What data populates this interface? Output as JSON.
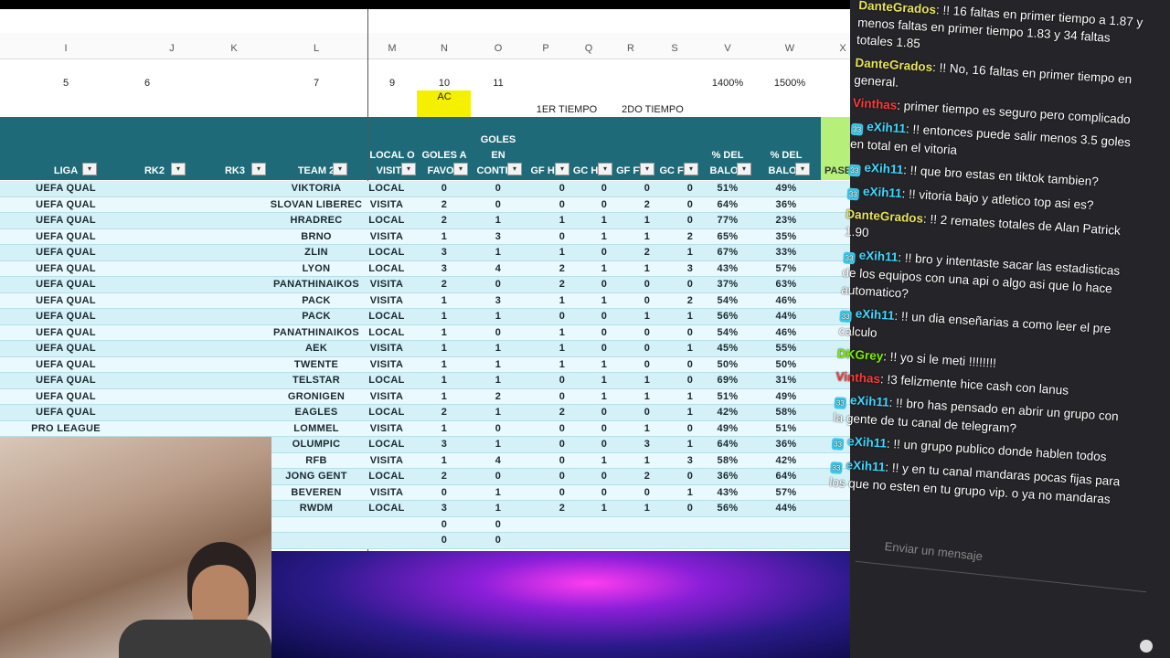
{
  "sheet": {
    "column_letters": [
      "I",
      "J",
      "K",
      "L",
      "M",
      "N",
      "O",
      "P",
      "Q",
      "R",
      "S",
      "V",
      "W",
      "X"
    ],
    "column_numbers": [
      5,
      6,
      7,
      9,
      10,
      11,
      "1400%",
      "1500%"
    ],
    "highlight": "AC",
    "half_labels": [
      "1ER TIEMPO",
      "2DO TIEMPO"
    ],
    "headers": [
      "LIGA",
      "RK2",
      "RK3",
      "TEAM 2",
      "LOCAL O VISITA",
      "GOLES A FAVOR",
      "GOLES EN CONTRA",
      "GF HT",
      "GC HT",
      "GF FT",
      "GC FT",
      "% DEL BALON",
      "% DEL BALON",
      "PASES"
    ],
    "rows": [
      {
        "liga": "UEFA QUAL",
        "cells": [
          "VIKTORIA",
          "LOCAL",
          0,
          0,
          0,
          0,
          0,
          0,
          "51%",
          "49%"
        ]
      },
      {
        "liga": "UEFA QUAL",
        "cells": [
          "SLOVAN LIBEREC",
          "VISITA",
          2,
          0,
          0,
          0,
          2,
          0,
          "64%",
          "36%"
        ]
      },
      {
        "liga": "UEFA QUAL",
        "cells": [
          "HRADREC",
          "LOCAL",
          2,
          1,
          1,
          1,
          1,
          0,
          "77%",
          "23%"
        ]
      },
      {
        "liga": "UEFA QUAL",
        "cells": [
          "BRNO",
          "VISITA",
          1,
          3,
          0,
          1,
          1,
          2,
          "65%",
          "35%"
        ]
      },
      {
        "liga": "UEFA QUAL",
        "cells": [
          "ZLIN",
          "LOCAL",
          3,
          1,
          1,
          0,
          2,
          1,
          "67%",
          "33%"
        ]
      },
      {
        "liga": "UEFA QUAL",
        "cells": [
          "LYON",
          "LOCAL",
          3,
          4,
          2,
          1,
          1,
          3,
          "43%",
          "57%"
        ]
      },
      {
        "liga": "UEFA QUAL",
        "cells": [
          "PANATHINAIKOS",
          "VISITA",
          2,
          0,
          2,
          0,
          0,
          0,
          "37%",
          "63%"
        ]
      },
      {
        "liga": "UEFA QUAL",
        "cells": [
          "PACK",
          "VISITA",
          1,
          3,
          1,
          1,
          0,
          2,
          "54%",
          "46%"
        ]
      },
      {
        "liga": "UEFA QUAL",
        "cells": [
          "PACK",
          "LOCAL",
          1,
          1,
          0,
          0,
          1,
          1,
          "56%",
          "44%"
        ]
      },
      {
        "liga": "UEFA QUAL",
        "cells": [
          "PANATHINAIKOS",
          "LOCAL",
          1,
          0,
          1,
          0,
          0,
          0,
          "54%",
          "46%"
        ]
      },
      {
        "liga": "UEFA QUAL",
        "cells": [
          "AEK",
          "VISITA",
          1,
          1,
          1,
          0,
          0,
          1,
          "45%",
          "55%"
        ]
      },
      {
        "liga": "UEFA QUAL",
        "cells": [
          "TWENTE",
          "VISITA",
          1,
          1,
          1,
          1,
          0,
          0,
          "50%",
          "50%"
        ]
      },
      {
        "liga": "UEFA QUAL",
        "cells": [
          "TELSTAR",
          "LOCAL",
          1,
          1,
          0,
          1,
          1,
          0,
          "69%",
          "31%"
        ]
      },
      {
        "liga": "UEFA QUAL",
        "cells": [
          "GRONIGEN",
          "VISITA",
          1,
          2,
          0,
          1,
          1,
          1,
          "51%",
          "49%"
        ]
      },
      {
        "liga": "UEFA QUAL",
        "cells": [
          "EAGLES",
          "LOCAL",
          2,
          1,
          2,
          0,
          0,
          1,
          "42%",
          "58%"
        ]
      },
      {
        "liga": "PRO LEAGUE",
        "cells": [
          "LOMMEL",
          "VISITA",
          1,
          0,
          0,
          0,
          1,
          0,
          "49%",
          "51%"
        ]
      },
      {
        "cells": [
          "OLUMPIC",
          "LOCAL",
          3,
          1,
          0,
          0,
          3,
          1,
          "64%",
          "36%"
        ]
      },
      {
        "cells": [
          "RFB",
          "VISITA",
          1,
          4,
          0,
          1,
          1,
          3,
          "58%",
          "42%"
        ]
      },
      {
        "cells": [
          "JONG GENT",
          "LOCAL",
          2,
          0,
          0,
          0,
          2,
          0,
          "36%",
          "64%"
        ]
      },
      {
        "cells": [
          "BEVEREN",
          "VISITA",
          0,
          1,
          0,
          0,
          0,
          1,
          "43%",
          "57%"
        ]
      },
      {
        "cells": [
          "RWDM",
          "LOCAL",
          3,
          1,
          2,
          1,
          1,
          0,
          "56%",
          "44%"
        ]
      }
    ],
    "extra_rows": [
      [
        0,
        0
      ],
      [
        0,
        0
      ]
    ]
  },
  "chat": {
    "messages": [
      {
        "user": "DanteGrados",
        "color": "#e6e35a",
        "badge": false,
        "text": ": !! 16 faltas en primer tiempo a 1.87 y menos faltas en primer tiempo 1.83 y 34 faltas totales 1.85"
      },
      {
        "user": "DanteGrados",
        "color": "#e6e35a",
        "badge": false,
        "text": ": !! No, 16 faltas en primer tiempo en general."
      },
      {
        "user": "Vinthas",
        "color": "#ff3a3a",
        "badge": false,
        "text": ": primer tiempo es seguro pero complicado"
      },
      {
        "user": "eXih11",
        "color": "#3fd8ff",
        "badge": true,
        "text": ": !! entonces puede salir menos 3.5 goles en total en el vitoria"
      },
      {
        "user": "eXih11",
        "color": "#3fd8ff",
        "badge": true,
        "text": ": !! que bro estas en tiktok tambien?"
      },
      {
        "user": "eXih11",
        "color": "#3fd8ff",
        "badge": true,
        "text": ": !! vitoria bajo y atletico top asi es?"
      },
      {
        "user": "DanteGrados",
        "color": "#e6e35a",
        "badge": false,
        "text": ": !! 2 remates totales de Alan Patrick 1.90"
      },
      {
        "user": "eXih11",
        "color": "#3fd8ff",
        "badge": true,
        "text": ": !! bro y intentaste sacar las estadisticas de los equipos con una api o algo asi que lo hace automatico?"
      },
      {
        "user": "eXih11",
        "color": "#3fd8ff",
        "badge": true,
        "text": ": !! un dia enseñarias a como leer el pre calculo"
      },
      {
        "user": "DKGrey",
        "color": "#7cf000",
        "badge": false,
        "text": ": !! yo si le meti !!!!!!!!"
      },
      {
        "user": "Vinthas",
        "color": "#ff3a3a",
        "badge": false,
        "text": ": !3 felizmente hice cash con lanus"
      },
      {
        "user": "eXih11",
        "color": "#3fd8ff",
        "badge": true,
        "text": ": !! bro has pensado en abrir un grupo con la gente de tu canal de telegram?"
      },
      {
        "user": "eXih11",
        "color": "#3fd8ff",
        "badge": true,
        "text": ": !! un grupo publico donde hablen todos"
      },
      {
        "user": "eXih11",
        "color": "#3fd8ff",
        "badge": true,
        "text": ": !! y en tu canal mandaras pocas fijas para los que no esten en tu grupo vip. o ya no mandaras"
      }
    ],
    "input_placeholder": "Enviar un mensaje"
  }
}
